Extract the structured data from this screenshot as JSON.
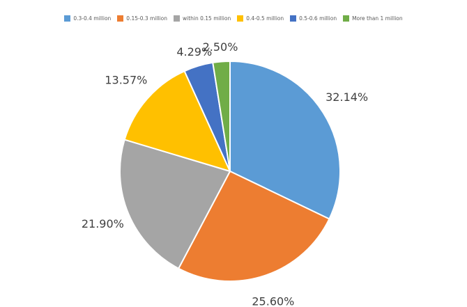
{
  "chart_data": {
    "type": "pie",
    "title": "",
    "legend_position": "top",
    "slices": [
      {
        "label": "0.3-0.4 million",
        "value": 32.14,
        "value_label": "32.14%",
        "color": "#5B9BD5"
      },
      {
        "label": "0.15-0.3 million",
        "value": 25.6,
        "value_label": "25.60%",
        "color": "#ED7D31"
      },
      {
        "label": "within 0.15 million",
        "value": 21.9,
        "value_label": "21.90%",
        "color": "#A5A5A5"
      },
      {
        "label": "0.4-0.5 million",
        "value": 13.57,
        "value_label": "13.57%",
        "color": "#FFC000"
      },
      {
        "label": "0.5-0.6 million",
        "value": 4.29,
        "value_label": "4.29%",
        "color": "#4472C4"
      },
      {
        "label": "More than 1 million",
        "value": 2.5,
        "value_label": "2.50%",
        "color": "#70AD47"
      }
    ]
  }
}
